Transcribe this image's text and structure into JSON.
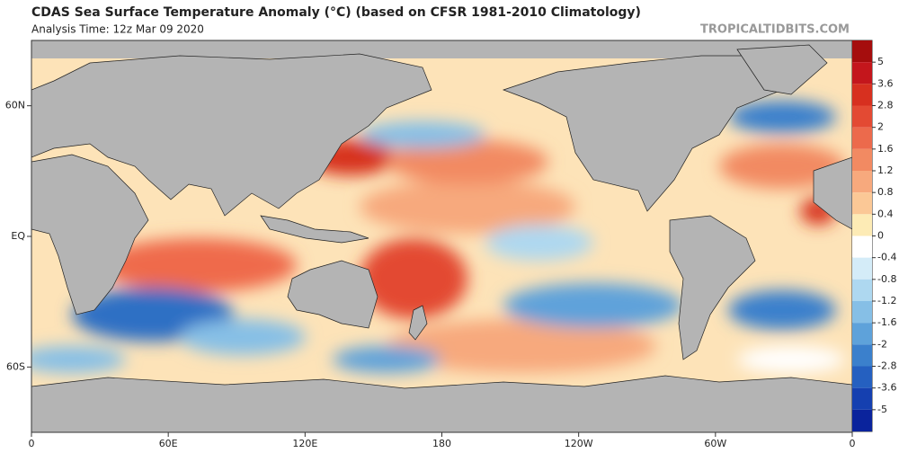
{
  "header": {
    "title": "CDAS Sea Surface Temperature Anomaly (°C) (based on CFSR 1981-2010 Climatology)",
    "subtitle": "Analysis Time: 12z Mar 09 2020",
    "source": "TROPICALTIDBITS.COM"
  },
  "map": {
    "xlim": [
      0,
      360
    ],
    "ylim": [
      -90,
      90
    ],
    "xticks": [
      0,
      {
        "value": 60,
        "label": "60E"
      },
      {
        "value": 120,
        "label": "120E"
      },
      180,
      {
        "value": 240,
        "label": "120W"
      },
      {
        "value": 300,
        "label": "60W"
      },
      {
        "value": 360,
        "label": "0"
      }
    ],
    "yticks": [
      {
        "value": 60,
        "label": "60N"
      },
      {
        "value": 0,
        "label": "EQ"
      },
      {
        "value": -60,
        "label": "60S"
      }
    ]
  },
  "colorbar": {
    "levels": [
      5,
      3.6,
      2.8,
      2,
      1.6,
      1.2,
      0.8,
      0.4,
      0,
      -0.4,
      -0.8,
      -1.2,
      -1.6,
      -2,
      -2.8,
      -3.6,
      -5
    ],
    "colors": [
      "#a50d0d",
      "#c4161c",
      "#d7301f",
      "#e34a33",
      "#ec6a4c",
      "#f28a62",
      "#f7a97d",
      "#fbc896",
      "#fdebb5",
      "#ffffff",
      "#d4ecf8",
      "#aed8f0",
      "#86bfe6",
      "#5ea2da",
      "#3b80cc",
      "#2560c0",
      "#1540b0",
      "#0a239c"
    ]
  }
}
